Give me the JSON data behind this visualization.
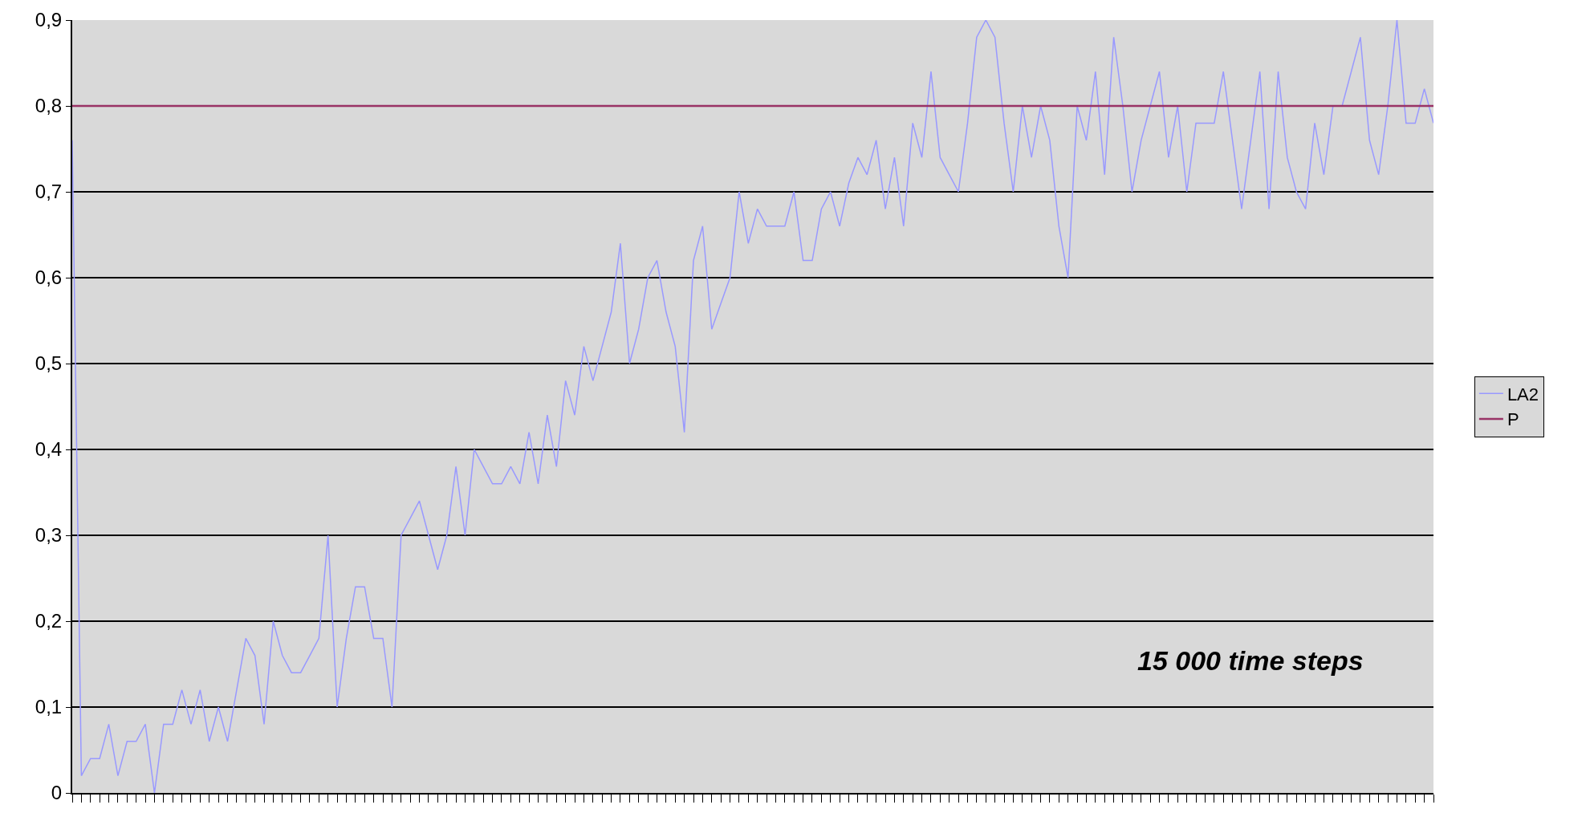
{
  "chart_data": {
    "type": "line",
    "categories": [
      null,
      null,
      null,
      null,
      null,
      null,
      null,
      null,
      null,
      null,
      null,
      null,
      null,
      null,
      null,
      null,
      null,
      null,
      null,
      null,
      null,
      null,
      null,
      null,
      null,
      null,
      null,
      null,
      null,
      null,
      null,
      null,
      null,
      null,
      null,
      null,
      null,
      null,
      null,
      null,
      null,
      null,
      null,
      null,
      null,
      null,
      null,
      null,
      null,
      null,
      null,
      null,
      null,
      null,
      null,
      null,
      null,
      null,
      null,
      null,
      null,
      null,
      null,
      null,
      null,
      null,
      null,
      null,
      null,
      null,
      null,
      null,
      null,
      null,
      null,
      null,
      null,
      null,
      null,
      null,
      null,
      null,
      null,
      null,
      null,
      null,
      null,
      null,
      null,
      null,
      null,
      null,
      null,
      null,
      null,
      null,
      null,
      null,
      null,
      null,
      null,
      null,
      null,
      null,
      null,
      null,
      null,
      null,
      null,
      null,
      null,
      null,
      null,
      null,
      null,
      null,
      null,
      null,
      null,
      null,
      null,
      null,
      null,
      null,
      null,
      null,
      null,
      null,
      null,
      null,
      null,
      null,
      null,
      null,
      null,
      null,
      null,
      null,
      null,
      null,
      null,
      null,
      null,
      null,
      null,
      null,
      null,
      null,
      null,
      null
    ],
    "series": [
      {
        "name": "LA2",
        "color": "#9999ff",
        "values": [
          0.76,
          0.02,
          0.04,
          0.04,
          0.08,
          0.02,
          0.06,
          0.06,
          0.08,
          0.0,
          0.08,
          0.08,
          0.12,
          0.08,
          0.12,
          0.06,
          0.1,
          0.06,
          0.12,
          0.18,
          0.16,
          0.08,
          0.2,
          0.16,
          0.14,
          0.14,
          0.16,
          0.18,
          0.3,
          0.1,
          0.18,
          0.24,
          0.24,
          0.18,
          0.18,
          0.1,
          0.3,
          0.32,
          0.34,
          0.3,
          0.26,
          0.3,
          0.38,
          0.3,
          0.4,
          0.38,
          0.36,
          0.36,
          0.38,
          0.36,
          0.42,
          0.36,
          0.44,
          0.38,
          0.48,
          0.44,
          0.52,
          0.48,
          0.52,
          0.56,
          0.64,
          0.5,
          0.54,
          0.6,
          0.62,
          0.56,
          0.52,
          0.42,
          0.62,
          0.66,
          0.54,
          0.57,
          0.6,
          0.7,
          0.64,
          0.68,
          0.66,
          0.66,
          0.66,
          0.7,
          0.62,
          0.62,
          0.68,
          0.7,
          0.66,
          0.71,
          0.74,
          0.72,
          0.76,
          0.68,
          0.74,
          0.66,
          0.78,
          0.74,
          0.84,
          0.74,
          0.72,
          0.7,
          0.78,
          0.88,
          0.9,
          0.88,
          0.78,
          0.7,
          0.8,
          0.74,
          0.8,
          0.76,
          0.66,
          0.6,
          0.8,
          0.76,
          0.84,
          0.72,
          0.88,
          0.8,
          0.7,
          0.76,
          0.8,
          0.84,
          0.74,
          0.8,
          0.7,
          0.78,
          0.78,
          0.78,
          0.84,
          0.76,
          0.68,
          0.76,
          0.84,
          0.68,
          0.84,
          0.74,
          0.7,
          0.68,
          0.78,
          0.72,
          0.8,
          0.8,
          0.84,
          0.88,
          0.76,
          0.72,
          0.8,
          0.9,
          0.78,
          0.78,
          0.82,
          0.78
        ]
      },
      {
        "name": "P",
        "color": "#993366",
        "values": [
          0.8,
          0.8,
          0.8,
          0.8,
          0.8,
          0.8,
          0.8,
          0.8,
          0.8,
          0.8,
          0.8,
          0.8,
          0.8,
          0.8,
          0.8,
          0.8,
          0.8,
          0.8,
          0.8,
          0.8,
          0.8,
          0.8,
          0.8,
          0.8,
          0.8,
          0.8,
          0.8,
          0.8,
          0.8,
          0.8,
          0.8,
          0.8,
          0.8,
          0.8,
          0.8,
          0.8,
          0.8,
          0.8,
          0.8,
          0.8,
          0.8,
          0.8,
          0.8,
          0.8,
          0.8,
          0.8,
          0.8,
          0.8,
          0.8,
          0.8,
          0.8,
          0.8,
          0.8,
          0.8,
          0.8,
          0.8,
          0.8,
          0.8,
          0.8,
          0.8,
          0.8,
          0.8,
          0.8,
          0.8,
          0.8,
          0.8,
          0.8,
          0.8,
          0.8,
          0.8,
          0.8,
          0.8,
          0.8,
          0.8,
          0.8,
          0.8,
          0.8,
          0.8,
          0.8,
          0.8,
          0.8,
          0.8,
          0.8,
          0.8,
          0.8,
          0.8,
          0.8,
          0.8,
          0.8,
          0.8,
          0.8,
          0.8,
          0.8,
          0.8,
          0.8,
          0.8,
          0.8,
          0.8,
          0.8,
          0.8,
          0.8,
          0.8,
          0.8,
          0.8,
          0.8,
          0.8,
          0.8,
          0.8,
          0.8,
          0.8,
          0.8,
          0.8,
          0.8,
          0.8,
          0.8,
          0.8,
          0.8,
          0.8,
          0.8,
          0.8,
          0.8,
          0.8,
          0.8,
          0.8,
          0.8,
          0.8,
          0.8,
          0.8,
          0.8,
          0.8,
          0.8,
          0.8,
          0.8,
          0.8,
          0.8,
          0.8,
          0.8,
          0.8,
          0.8,
          0.8,
          0.8,
          0.8,
          0.8,
          0.8,
          0.8,
          0.8,
          0.8,
          0.8,
          0.8,
          0.8
        ]
      }
    ],
    "ylim": [
      0,
      0.9
    ],
    "yticks": [
      0,
      {
        "value": 0.1,
        "label": "0,1"
      },
      {
        "value": 0.2,
        "label": "0,2"
      },
      {
        "value": 0.3,
        "label": "0,3"
      },
      {
        "value": 0.4,
        "label": "0,4"
      },
      {
        "value": 0.5,
        "label": "0,5"
      },
      {
        "value": 0.6,
        "label": "0,6"
      },
      {
        "value": 0.7,
        "label": "0,7"
      },
      {
        "value": 0.8,
        "label": "0,8"
      },
      {
        "value": 0.9,
        "label": "0,9"
      }
    ],
    "grid": "y",
    "legend": "right",
    "marker": "none",
    "line_style": "solid",
    "annotations": [
      "15 000 time steps"
    ]
  }
}
